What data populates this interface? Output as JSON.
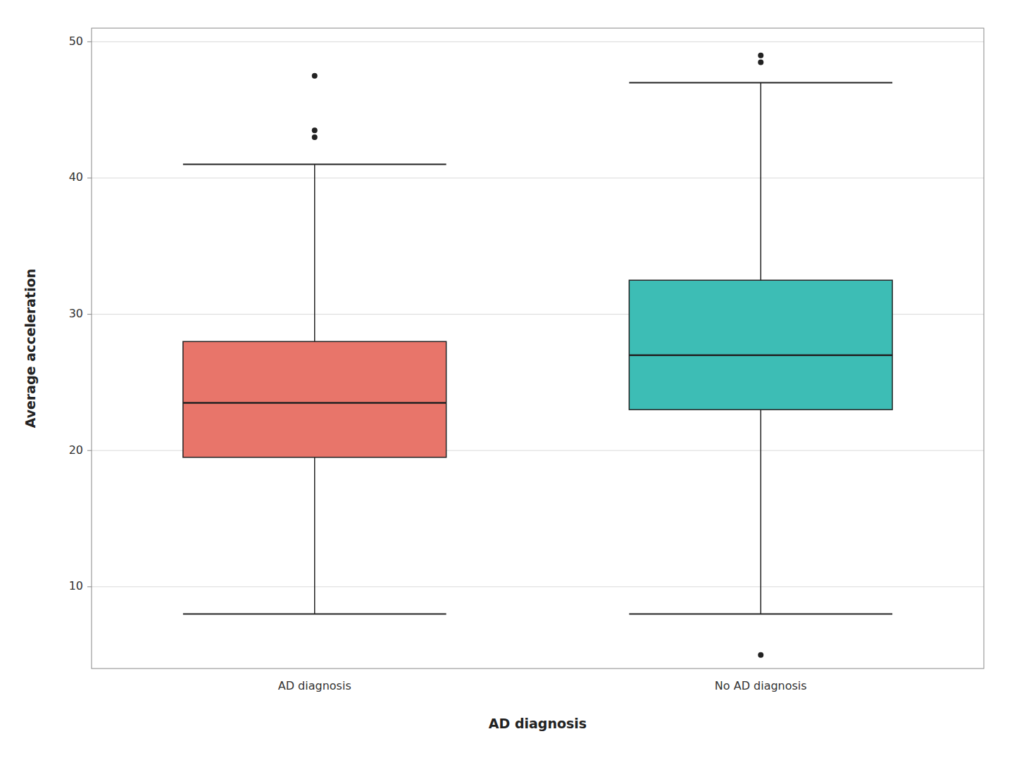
{
  "chart_data": {
    "type": "box",
    "xlabel": "AD diagnosis",
    "ylabel": "Average acceleration",
    "categories": [
      "AD diagnosis",
      "No AD diagnosis"
    ],
    "boxes": [
      {
        "q1": 19.5,
        "median": 23.5,
        "q3": 28.0,
        "whisker_low": 8.0,
        "whisker_high": 41.0,
        "outliers": [
          43.0,
          43.5,
          47.5
        ]
      },
      {
        "q1": 23.0,
        "median": 27.0,
        "q3": 32.5,
        "whisker_low": 8.0,
        "whisker_high": 47.0,
        "outliers": [
          5.0,
          48.5,
          49.0
        ]
      }
    ],
    "colors": [
      "#E8756A",
      "#3DBDB5"
    ],
    "ylim": [
      4,
      51
    ],
    "yticks": [
      10,
      20,
      30,
      40,
      50
    ],
    "grid": true
  }
}
